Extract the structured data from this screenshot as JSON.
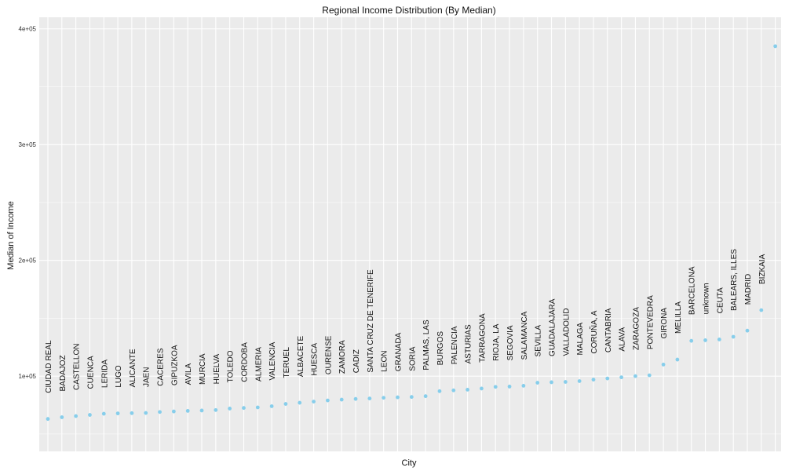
{
  "chart_data": {
    "type": "scatter",
    "title": "Regional Income Distribution (By Median)",
    "xlabel": "City",
    "ylabel": "Median of Income",
    "y_ticks": [
      {
        "value": 100000,
        "label": "1e+05"
      },
      {
        "value": 200000,
        "label": "2e+05"
      },
      {
        "value": 300000,
        "label": "3e+05"
      },
      {
        "value": 400000,
        "label": "4e+05"
      }
    ],
    "ylim": [
      35000,
      410000
    ],
    "grid": true,
    "point_color": "#87ceeb",
    "panel_color": "#ebebeb",
    "points": [
      {
        "label": "CIUDAD REAL",
        "y": 63000
      },
      {
        "label": "BADAJOZ",
        "y": 64500
      },
      {
        "label": "CASTELLON",
        "y": 65500
      },
      {
        "label": "CUENCA",
        "y": 66500
      },
      {
        "label": "LERIDA",
        "y": 67500
      },
      {
        "label": "LUGO",
        "y": 67800
      },
      {
        "label": "ALICANTE",
        "y": 68000
      },
      {
        "label": "JAEN",
        "y": 68200
      },
      {
        "label": "CACERES",
        "y": 69000
      },
      {
        "label": "GIPUZKOA",
        "y": 69500
      },
      {
        "label": "AVILA",
        "y": 70000
      },
      {
        "label": "MURCIA",
        "y": 70300
      },
      {
        "label": "HUELVA",
        "y": 70700
      },
      {
        "label": "TOLEDO",
        "y": 72000
      },
      {
        "label": "CORDOBA",
        "y": 72500
      },
      {
        "label": "ALMERIA",
        "y": 73000
      },
      {
        "label": "VALENCIA",
        "y": 74000
      },
      {
        "label": "TERUEL",
        "y": 76000
      },
      {
        "label": "ALBACETE",
        "y": 77000
      },
      {
        "label": "HUESCA",
        "y": 78000
      },
      {
        "label": "OURENSE",
        "y": 79000
      },
      {
        "label": "ZAMORA",
        "y": 79700
      },
      {
        "label": "CADIZ",
        "y": 80300
      },
      {
        "label": "SANTA CRUZ DE TENERIFE",
        "y": 80700
      },
      {
        "label": "LEON",
        "y": 81300
      },
      {
        "label": "GRANADA",
        "y": 81700
      },
      {
        "label": "SORIA",
        "y": 82000
      },
      {
        "label": "PALMAS, LAS",
        "y": 82700
      },
      {
        "label": "BURGOS",
        "y": 87000
      },
      {
        "label": "PALENCIA",
        "y": 87700
      },
      {
        "label": "ASTURIAS",
        "y": 88300
      },
      {
        "label": "TARRAGONA",
        "y": 89300
      },
      {
        "label": "RIOJA, LA",
        "y": 90700
      },
      {
        "label": "SEGOVIA",
        "y": 91000
      },
      {
        "label": "SALAMANCA",
        "y": 91700
      },
      {
        "label": "SEVILLA",
        "y": 94300
      },
      {
        "label": "GUADALAJARA",
        "y": 94700
      },
      {
        "label": "VALLADOLID",
        "y": 95000
      },
      {
        "label": "MALAGA",
        "y": 95700
      },
      {
        "label": "CORUÑA, A",
        "y": 97000
      },
      {
        "label": "CANTABRIA",
        "y": 98000
      },
      {
        "label": "ALAVA",
        "y": 99000
      },
      {
        "label": "ZARAGOZA",
        "y": 100000
      },
      {
        "label": "PONTEVEDRA",
        "y": 100700
      },
      {
        "label": "GIRONA",
        "y": 110000
      },
      {
        "label": "MELILLA",
        "y": 114300
      },
      {
        "label": "BARCELONA",
        "y": 130500
      },
      {
        "label": "unknown",
        "y": 131000
      },
      {
        "label": "CEUTA",
        "y": 131700
      },
      {
        "label": "BALEARS, ILLES",
        "y": 134000
      },
      {
        "label": "MADRID",
        "y": 139300
      },
      {
        "label": "BIZKAIA",
        "y": 157000
      },
      {
        "label": "",
        "y": 385000
      }
    ]
  }
}
